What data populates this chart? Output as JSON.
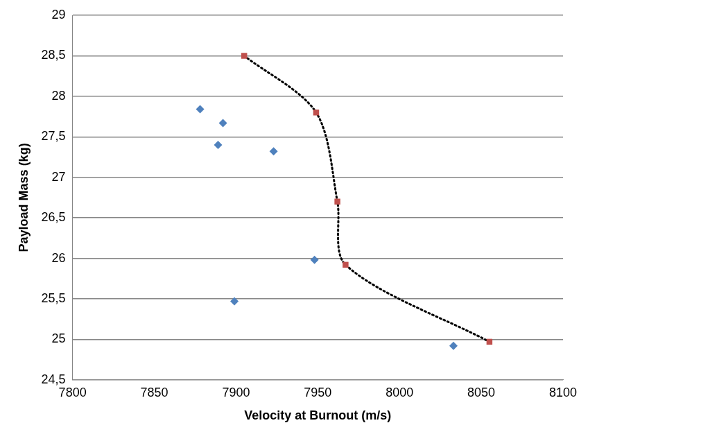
{
  "chart_data": {
    "type": "scatter",
    "xlabel": "Velocity at Burnout (m/s)",
    "ylabel": "Payload Mass (kg)",
    "xlim": [
      7800,
      8100
    ],
    "xticks": [
      7800,
      7850,
      7900,
      7950,
      8000,
      8050,
      8100
    ],
    "ylim": [
      24.5,
      29
    ],
    "yticks": [
      {
        "value": 24.5,
        "label": "24,5"
      },
      25,
      {
        "value": 25.5,
        "label": "25,5"
      },
      26,
      {
        "value": 26.5,
        "label": "26,5"
      },
      27,
      {
        "value": 27.5,
        "label": "27,5"
      },
      28,
      {
        "value": 28.5,
        "label": "28,5"
      },
      29
    ],
    "grid": "y",
    "legend": false,
    "series": [
      {
        "marker": "diamond",
        "color": "#4f81bd",
        "x": [
          7878,
          7892,
          7889,
          7923,
          7948,
          7899,
          8033
        ],
        "values": [
          27.84,
          27.67,
          27.4,
          27.32,
          25.98,
          25.47,
          24.92
        ]
      },
      {
        "type": "line",
        "marker": "none",
        "line_style": "dotted",
        "color": "#000000",
        "x": [
          7905,
          7949,
          7962,
          7967,
          8055
        ],
        "values": [
          28.5,
          27.8,
          26.7,
          25.92,
          24.97
        ]
      },
      {
        "marker": "square",
        "color": "#c0504d",
        "x": [
          7905,
          7949,
          7962,
          7967,
          8055
        ],
        "values": [
          28.5,
          27.8,
          26.7,
          25.92,
          24.97
        ]
      }
    ]
  }
}
